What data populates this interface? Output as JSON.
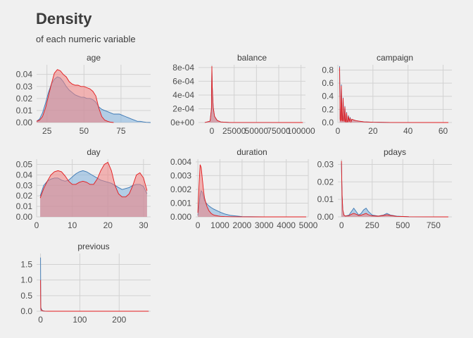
{
  "title": "Density",
  "subtitle": "of each numeric variable",
  "colors": {
    "background": "#f0f0f0",
    "grid": "#d2d2d2",
    "series_a_line": "#3c78b4",
    "series_a_fill": "#7fb0dc",
    "series_b_line": "#e31a1c",
    "series_b_fill": "#f08080"
  },
  "chart_data": [
    {
      "type": "area",
      "facet": "age",
      "xlim": [
        18,
        95
      ],
      "ylim": [
        0,
        0.048
      ],
      "xticks": [
        25,
        50,
        75
      ],
      "yticks": [
        0.0,
        0.01,
        0.02,
        0.03,
        0.04
      ],
      "xtick_labels": [
        "25",
        "50",
        "75"
      ],
      "ytick_labels": [
        "0.00",
        "0.01",
        "0.02",
        "0.03",
        "0.04"
      ],
      "series": [
        {
          "x": [
            18,
            20,
            22,
            24,
            26,
            28,
            30,
            32,
            34,
            36,
            38,
            40,
            42,
            44,
            46,
            48,
            50,
            52,
            54,
            56,
            58,
            60,
            62,
            64,
            66,
            68,
            70,
            72,
            74,
            76,
            78,
            80,
            82,
            84,
            86,
            88,
            90,
            92,
            95
          ],
          "values": [
            0.001,
            0.003,
            0.008,
            0.016,
            0.025,
            0.032,
            0.036,
            0.038,
            0.037,
            0.034,
            0.03,
            0.027,
            0.025,
            0.023,
            0.022,
            0.021,
            0.021,
            0.02,
            0.02,
            0.019,
            0.017,
            0.013,
            0.011,
            0.01,
            0.009,
            0.008,
            0.007,
            0.007,
            0.007,
            0.006,
            0.005,
            0.004,
            0.003,
            0.002,
            0.001,
            0.001,
            0.0005,
            0.0002,
            0
          ]
        },
        {
          "x": [
            18,
            20,
            22,
            24,
            26,
            28,
            30,
            32,
            34,
            36,
            38,
            40,
            42,
            44,
            46,
            48,
            50,
            52,
            54,
            56,
            58,
            60,
            62,
            64,
            66,
            68,
            70
          ],
          "values": [
            0.001,
            0.002,
            0.005,
            0.012,
            0.022,
            0.032,
            0.041,
            0.044,
            0.043,
            0.04,
            0.038,
            0.034,
            0.032,
            0.031,
            0.031,
            0.03,
            0.03,
            0.029,
            0.028,
            0.026,
            0.022,
            0.012,
            0.005,
            0.002,
            0.001,
            0.0003,
            0
          ]
        }
      ]
    },
    {
      "type": "area",
      "facet": "balance",
      "xlim": [
        -15000,
        105000
      ],
      "ylim": [
        0,
        0.00084
      ],
      "xticks": [
        0,
        25000,
        50000,
        75000,
        100000
      ],
      "yticks": [
        0,
        0.0002,
        0.0004,
        0.0006,
        0.0008
      ],
      "xtick_labels": [
        "0",
        "25000",
        "50000",
        "75000",
        "100000"
      ],
      "ytick_labels": [
        "0e+00",
        "2e-04",
        "4e-04",
        "6e-04",
        "8e-04"
      ],
      "series": [
        {
          "x": [
            -8000,
            -2000,
            -500,
            0,
            500,
            1500,
            3000,
            6000,
            10000,
            20000,
            102000
          ],
          "values": [
            0,
            2e-05,
            0.0002,
            0.00078,
            0.0005,
            0.00022,
            9e-05,
            3e-05,
            8e-06,
            1e-06,
            0
          ]
        },
        {
          "x": [
            -8000,
            -2000,
            -500,
            0,
            500,
            1500,
            3000,
            6000,
            10000,
            20000,
            102000
          ],
          "values": [
            0,
            2e-05,
            0.0002,
            0.00082,
            0.0005,
            0.00022,
            9e-05,
            3e-05,
            8e-06,
            1e-06,
            0
          ]
        }
      ]
    },
    {
      "type": "area",
      "facet": "campaign",
      "xlim": [
        0,
        65
      ],
      "ylim": [
        0,
        0.88
      ],
      "xticks": [
        0,
        20,
        40,
        60
      ],
      "yticks": [
        0.0,
        0.2,
        0.4,
        0.6,
        0.8
      ],
      "xtick_labels": [
        "0",
        "20",
        "40",
        "60"
      ],
      "ytick_labels": [
        "0.0",
        "0.2",
        "0.4",
        "0.6",
        "0.8"
      ],
      "series": [
        {
          "x": [
            1,
            1.3,
            1.6,
            2,
            2.3,
            2.6,
            3,
            3.3,
            3.6,
            4,
            4.3,
            4.6,
            5,
            5.3,
            5.6,
            6,
            6.5,
            7,
            7.5,
            8,
            9,
            10,
            12,
            15,
            20,
            30,
            63
          ],
          "values": [
            0.86,
            0.05,
            0.02,
            0.58,
            0.04,
            0.02,
            0.38,
            0.03,
            0.02,
            0.25,
            0.02,
            0.01,
            0.16,
            0.01,
            0.01,
            0.11,
            0.01,
            0.08,
            0.01,
            0.05,
            0.04,
            0.03,
            0.02,
            0.01,
            0.004,
            0.001,
            0
          ]
        },
        {
          "x": [
            1,
            1.3,
            1.6,
            2,
            2.3,
            2.6,
            3,
            3.3,
            3.6,
            4,
            4.3,
            4.6,
            5,
            5.3,
            5.6,
            6,
            6.5,
            7,
            7.5,
            8,
            9,
            10,
            12,
            15,
            20,
            30,
            63
          ],
          "values": [
            0.84,
            0.05,
            0.02,
            0.56,
            0.04,
            0.02,
            0.37,
            0.03,
            0.02,
            0.24,
            0.02,
            0.01,
            0.15,
            0.01,
            0.01,
            0.1,
            0.01,
            0.07,
            0.01,
            0.05,
            0.04,
            0.03,
            0.02,
            0.01,
            0.004,
            0.001,
            0
          ]
        }
      ]
    },
    {
      "type": "area",
      "facet": "day",
      "xlim": [
        0,
        32
      ],
      "ylim": [
        0,
        0.055
      ],
      "xticks": [
        0,
        10,
        20,
        30
      ],
      "yticks": [
        0.0,
        0.01,
        0.02,
        0.03,
        0.04,
        0.05
      ],
      "xtick_labels": [
        "0",
        "10",
        "20",
        "30"
      ],
      "ytick_labels": [
        "0.00",
        "0.01",
        "0.02",
        "0.03",
        "0.04",
        "0.05"
      ],
      "series": [
        {
          "x": [
            1,
            2,
            3,
            4,
            5,
            6,
            7,
            8,
            9,
            10,
            11,
            12,
            13,
            14,
            15,
            16,
            17,
            18,
            19,
            20,
            21,
            22,
            23,
            24,
            25,
            26,
            27,
            28,
            29,
            30,
            31
          ],
          "values": [
            0.02,
            0.03,
            0.034,
            0.036,
            0.037,
            0.037,
            0.035,
            0.034,
            0.035,
            0.038,
            0.041,
            0.043,
            0.044,
            0.043,
            0.041,
            0.039,
            0.037,
            0.035,
            0.034,
            0.033,
            0.032,
            0.03,
            0.028,
            0.026,
            0.027,
            0.028,
            0.03,
            0.031,
            0.031,
            0.029,
            0.022
          ]
        },
        {
          "x": [
            1,
            2,
            3,
            4,
            5,
            6,
            7,
            8,
            9,
            10,
            11,
            12,
            13,
            14,
            15,
            16,
            17,
            18,
            19,
            20,
            21,
            22,
            23,
            24,
            25,
            26,
            27,
            28,
            29,
            30,
            31
          ],
          "values": [
            0.018,
            0.027,
            0.034,
            0.04,
            0.043,
            0.044,
            0.043,
            0.039,
            0.034,
            0.031,
            0.031,
            0.033,
            0.034,
            0.033,
            0.031,
            0.031,
            0.036,
            0.044,
            0.05,
            0.052,
            0.044,
            0.03,
            0.022,
            0.019,
            0.019,
            0.022,
            0.03,
            0.04,
            0.042,
            0.037,
            0.025
          ]
        }
      ]
    },
    {
      "type": "area",
      "facet": "duration",
      "xlim": [
        -100,
        5000
      ],
      "ylim": [
        0,
        0.0042
      ],
      "xticks": [
        0,
        1000,
        2000,
        3000,
        4000,
        5000
      ],
      "yticks": [
        0,
        0.001,
        0.002,
        0.003,
        0.004
      ],
      "xtick_labels": [
        "0",
        "1000",
        "2000",
        "3000",
        "4000",
        "5000"
      ],
      "ytick_labels": [
        "0.000",
        "0.001",
        "0.002",
        "0.003",
        "0.004"
      ],
      "series": [
        {
          "x": [
            0,
            50,
            100,
            150,
            200,
            250,
            300,
            400,
            500,
            600,
            700,
            800,
            1000,
            1200,
            1500,
            2000,
            3000,
            4900
          ],
          "values": [
            0.0001,
            0.0008,
            0.0016,
            0.0019,
            0.0018,
            0.0015,
            0.0012,
            0.00095,
            0.0008,
            0.00068,
            0.00058,
            0.0005,
            0.00035,
            0.00022,
            0.0001,
            2e-05,
            3e-06,
            0
          ]
        },
        {
          "x": [
            0,
            50,
            100,
            150,
            200,
            250,
            300,
            400,
            500,
            600,
            700,
            800,
            1000,
            1200,
            1500,
            2000,
            3000,
            4900
          ],
          "values": [
            0.0003,
            0.0022,
            0.0038,
            0.0036,
            0.0028,
            0.002,
            0.0014,
            0.0008,
            0.00045,
            0.00025,
            0.00015,
            0.0001,
            4e-05,
            2e-05,
            1e-05,
            3e-06,
            1e-06,
            0
          ]
        }
      ]
    },
    {
      "type": "area",
      "facet": "pdays",
      "xlim": [
        -30,
        900
      ],
      "ylim": [
        0,
        0.033
      ],
      "xticks": [
        0,
        250,
        500,
        750
      ],
      "yticks": [
        0.0,
        0.01,
        0.02,
        0.03
      ],
      "xtick_labels": [
        "0",
        "250",
        "500",
        "750"
      ],
      "ytick_labels": [
        "0.00",
        "0.01",
        "0.02",
        "0.03"
      ],
      "series": [
        {
          "x": [
            -1,
            2,
            5,
            10,
            20,
            30,
            60,
            80,
            100,
            120,
            140,
            160,
            180,
            200,
            220,
            250,
            300,
            340,
            370,
            400,
            450,
            500,
            550,
            871
          ],
          "values": [
            0.031,
            0.02,
            0.012,
            0.004,
            0.001,
            0.0005,
            0.001,
            0.003,
            0.005,
            0.003,
            0.001,
            0.002,
            0.004,
            0.005,
            0.003,
            0.001,
            0.0005,
            0.001,
            0.002,
            0.001,
            0.0004,
            0.0002,
            0.0001,
            0
          ]
        },
        {
          "x": [
            -1,
            2,
            5,
            10,
            20,
            30,
            60,
            80,
            100,
            120,
            140,
            160,
            180,
            200,
            220,
            250,
            300,
            340,
            370,
            400,
            450,
            500,
            550,
            871
          ],
          "values": [
            0.032,
            0.021,
            0.012,
            0.004,
            0.001,
            0.0005,
            0.0007,
            0.0015,
            0.002,
            0.0015,
            0.0008,
            0.001,
            0.0015,
            0.002,
            0.0012,
            0.0006,
            0.0004,
            0.0008,
            0.0012,
            0.0008,
            0.0003,
            0.0002,
            0.0001,
            0
          ]
        }
      ]
    },
    {
      "type": "area",
      "facet": "previous",
      "xlim": [
        -10,
        280
      ],
      "ylim": [
        0,
        1.85
      ],
      "xticks": [
        0,
        100,
        200
      ],
      "yticks": [
        0.0,
        0.5,
        1.0,
        1.5
      ],
      "xtick_labels": [
        "0",
        "100",
        "200"
      ],
      "ytick_labels": [
        "0.0",
        "0.5",
        "1.0",
        "1.5"
      ],
      "series": [
        {
          "x": [
            0,
            0.5,
            1,
            1.5,
            2,
            3,
            4,
            6,
            10,
            20,
            275
          ],
          "values": [
            1.72,
            0.2,
            0.12,
            0.07,
            0.08,
            0.05,
            0.03,
            0.015,
            0.005,
            0.001,
            0
          ]
        },
        {
          "x": [
            0,
            0.5,
            1,
            1.5,
            2,
            3,
            4,
            6,
            10,
            20,
            275
          ],
          "values": [
            1.0,
            0.12,
            0.08,
            0.05,
            0.05,
            0.03,
            0.02,
            0.01,
            0.004,
            0.001,
            0
          ]
        }
      ]
    }
  ]
}
